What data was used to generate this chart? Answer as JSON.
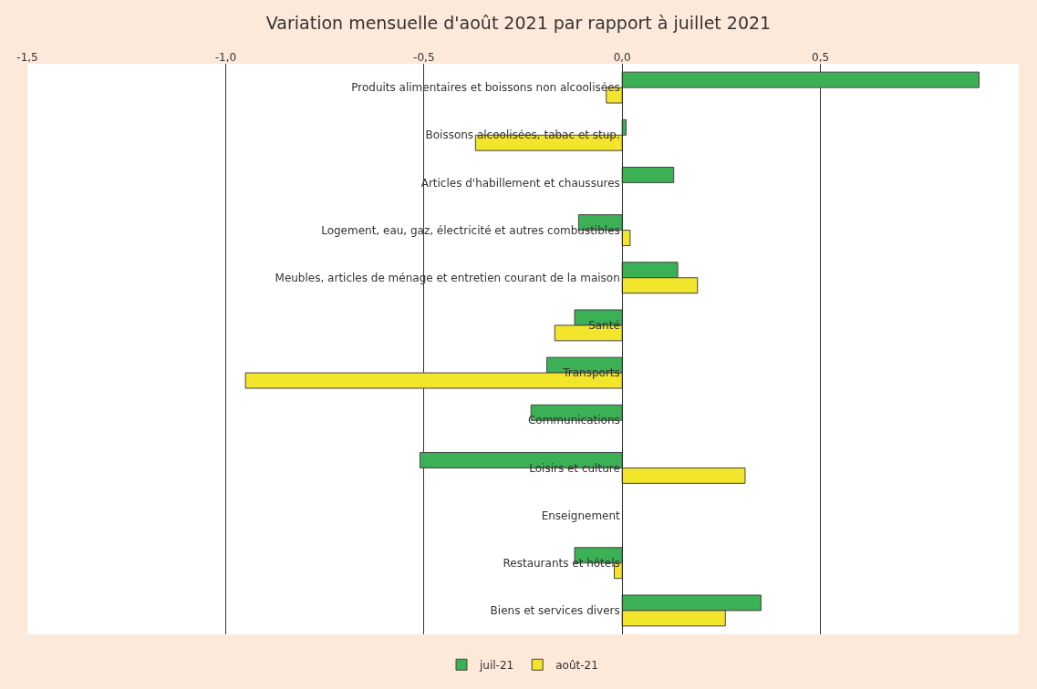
{
  "chart_data": {
    "type": "bar",
    "orientation": "horizontal",
    "title": "Variation mensuelle d'août 2021 par rapport à juillet 2021",
    "categories": [
      "Produits alimentaires et boissons non alcoolisées",
      "Boissons alcoolisées, tabac et stup.",
      "Articles d'habillement et chaussures",
      "Logement, eau, gaz, électricité et autres combustibles",
      "Meubles, articles de ménage et entretien courant de la maison",
      "Santé",
      "Transports",
      "Communications",
      "Loisirs et culture",
      "Enseignement",
      "Restaurants et hôtels",
      "Biens et services divers"
    ],
    "series": [
      {
        "name": "juil-21",
        "color": "#3cb054",
        "values": [
          0.9,
          0.01,
          0.13,
          -0.11,
          0.14,
          -0.12,
          -0.19,
          -0.23,
          -0.51,
          0,
          -0.12,
          0.35
        ]
      },
      {
        "name": "août-21",
        "color": "#f2e52c",
        "values": [
          -0.04,
          -0.37,
          0,
          0.02,
          0.19,
          -0.17,
          -0.95,
          0,
          0.31,
          0,
          -0.02,
          0.26
        ]
      }
    ],
    "xlim": [
      -1.5,
      1.0
    ],
    "xticks": [
      {
        "value": -1.5,
        "label": "-1,5"
      },
      {
        "value": -1.0,
        "label": "-1,0"
      },
      {
        "value": -0.5,
        "label": "-0,5"
      },
      {
        "value": 0,
        "label": "0,0"
      },
      {
        "value": 0.5,
        "label": "0,5"
      }
    ],
    "grid": "x",
    "legend": "bottom"
  }
}
